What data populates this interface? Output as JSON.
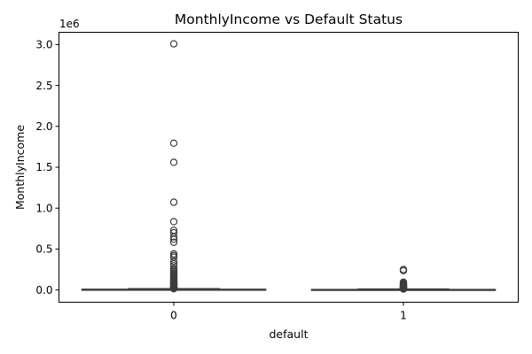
{
  "chart_data": {
    "type": "box",
    "title": "MonthlyIncome vs Default Status",
    "xlabel": "default",
    "ylabel": "MonthlyIncome",
    "y_scale_label": "1e6",
    "categories": [
      "0",
      "1"
    ],
    "y_ticks": [
      {
        "value": 0,
        "label": "0.0"
      },
      {
        "value": 500000,
        "label": "0.5"
      },
      {
        "value": 1000000,
        "label": "1.0"
      },
      {
        "value": 1500000,
        "label": "1.5"
      },
      {
        "value": 2000000,
        "label": "2.0"
      },
      {
        "value": 2500000,
        "label": "2.5"
      },
      {
        "value": 3000000,
        "label": "3.0"
      }
    ],
    "ylim": [
      -150000,
      3150000
    ],
    "grid": false,
    "box_color": "#3274a1",
    "series": [
      {
        "category": "0",
        "whisker_low": 0,
        "q1": 3400,
        "median": 5400,
        "q3": 8200,
        "whisker_high": 15200,
        "outliers": [
          3008750,
          1794060,
          1560100,
          1072500,
          835040,
          730000,
          699530,
          649590,
          620000,
          582370,
          441000,
          420000,
          400000,
          349000,
          319000,
          296000,
          260000,
          240000,
          222000,
          205000,
          190000,
          175000,
          160000,
          148000,
          136000,
          125000,
          115000,
          105000,
          96000,
          88000,
          80000,
          72000,
          65000,
          58000,
          52000,
          46000,
          41000,
          36000,
          32000,
          28000,
          25000,
          22000,
          19500,
          17500,
          16200
        ]
      },
      {
        "category": "1",
        "whisker_low": 0,
        "q1": 2500,
        "median": 4000,
        "q3": 6000,
        "whisker_high": 11200,
        "outliers": [
          250000,
          236000,
          95000,
          82000,
          72000,
          63000,
          56000,
          49000,
          43000,
          38000,
          33000,
          29000,
          25000,
          22000,
          19000,
          16500,
          14500,
          12500,
          11800
        ]
      }
    ]
  }
}
